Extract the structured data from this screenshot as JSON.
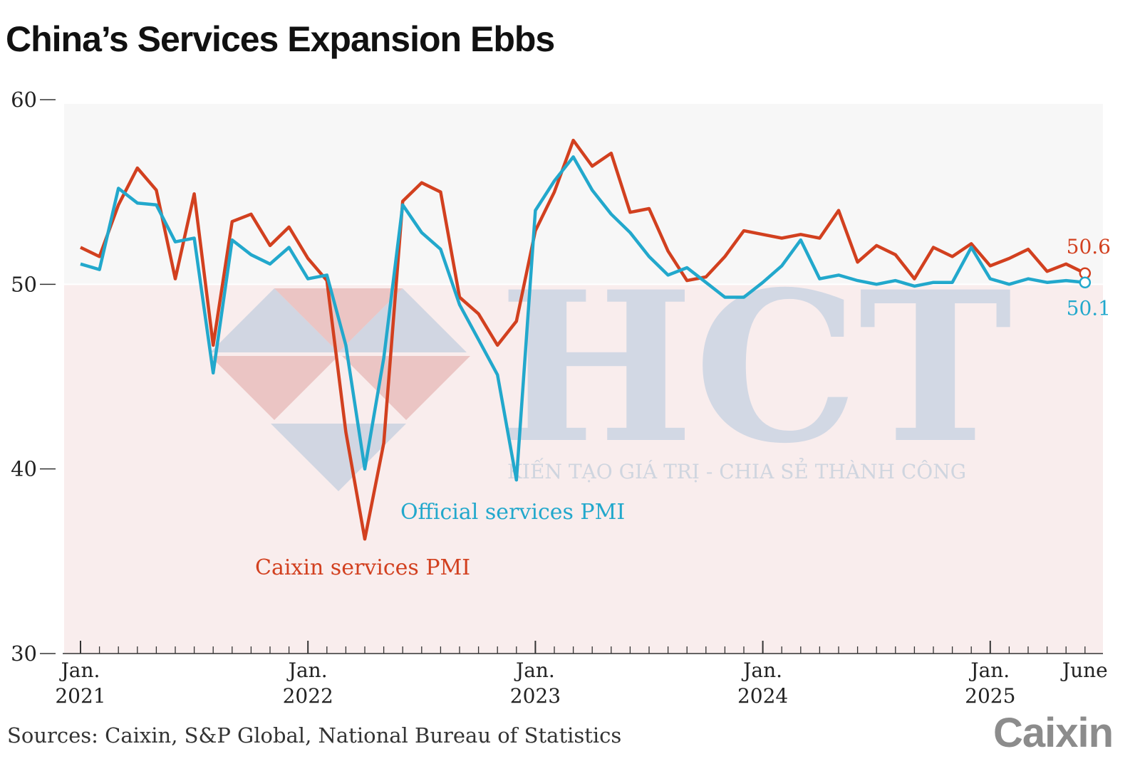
{
  "chart_data": {
    "type": "line",
    "title": "China’s Services Expansion Ebbs",
    "ylim": [
      30,
      60
    ],
    "yticks": [
      30,
      40,
      50,
      60
    ],
    "ytick_labels": [
      "30",
      "40",
      "50",
      "60"
    ],
    "x_range": [
      "2021-01",
      "2025-06"
    ],
    "x_labels": [
      {
        "month_index": 0,
        "line1": "Jan.",
        "line2": "2021"
      },
      {
        "month_index": 12,
        "line1": "Jan.",
        "line2": "2022"
      },
      {
        "month_index": 24,
        "line1": "Jan.",
        "line2": "2023"
      },
      {
        "month_index": 36,
        "line1": "Jan.",
        "line2": "2024"
      },
      {
        "month_index": 48,
        "line1": "Jan.",
        "line2": "2025"
      },
      {
        "month_index": 53,
        "line1": "June",
        "line2": ""
      }
    ],
    "reference_line": 50,
    "series": [
      {
        "name": "Caixin services PMI",
        "color": "#d2401f",
        "end_label": "50.6",
        "values": [
          52.0,
          51.5,
          54.3,
          56.3,
          55.1,
          50.3,
          54.9,
          46.7,
          53.4,
          53.8,
          52.1,
          53.1,
          51.4,
          50.2,
          42.0,
          36.2,
          41.4,
          54.5,
          55.5,
          55.0,
          49.3,
          48.4,
          46.7,
          48.0,
          52.9,
          55.0,
          57.8,
          56.4,
          57.1,
          53.9,
          54.1,
          51.8,
          50.2,
          50.4,
          51.5,
          52.9,
          52.7,
          52.5,
          52.7,
          52.5,
          54.0,
          51.2,
          52.1,
          51.6,
          50.3,
          52.0,
          51.5,
          52.2,
          51.0,
          51.4,
          51.9,
          50.7,
          51.1,
          50.6
        ]
      },
      {
        "name": "Official services PMI",
        "color": "#22a8cc",
        "end_label": "50.1",
        "values": [
          51.1,
          50.8,
          55.2,
          54.4,
          54.3,
          52.3,
          52.5,
          45.2,
          52.4,
          51.6,
          51.1,
          52.0,
          50.3,
          50.5,
          46.7,
          40.0,
          46.0,
          54.3,
          52.8,
          51.9,
          48.9,
          47.0,
          45.1,
          39.4,
          54.0,
          55.6,
          56.9,
          55.1,
          53.8,
          52.8,
          51.5,
          50.5,
          50.9,
          50.1,
          49.3,
          49.3,
          50.1,
          51.0,
          52.4,
          50.3,
          50.5,
          50.2,
          50.0,
          50.2,
          49.9,
          50.1,
          50.1,
          52.0,
          50.3,
          50.0,
          50.3,
          50.1,
          50.2,
          50.1
        ]
      }
    ],
    "series_labels": [
      "Official services PMI",
      "Caixin services PMI"
    ]
  },
  "source": "Sources: Caixin, S&P Global, National Bureau of Statistics",
  "logo_text": "Caixin",
  "watermark": {
    "letters": "HCT",
    "tagline": "KIẾN TẠO GIÁ TRỊ - CHIA SẺ THÀNH CÔNG"
  },
  "colors": {
    "above_50_bg": "#f7f7f7",
    "below_50_bg": "#f9eded",
    "axis": "#333333"
  }
}
